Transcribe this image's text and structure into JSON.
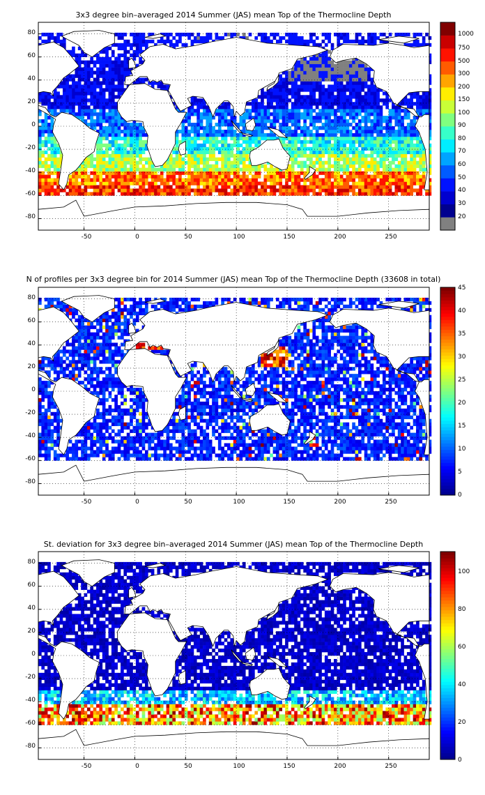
{
  "colors": {
    "land_fill": "#ffffff",
    "coast_stroke": "#000000",
    "grid_stroke": "#000000",
    "missing_gray": "#808080",
    "jet": [
      "#00008f",
      "#0000ff",
      "#0080ff",
      "#00ffff",
      "#80ff80",
      "#ffff00",
      "#ff8000",
      "#ff0000",
      "#800000"
    ]
  },
  "chart_data": [
    {
      "type": "heatmap",
      "title": "3x3 degree bin–averaged 2014 Summer (JAS) mean Top of the Thermocline Depth",
      "xlabel": "",
      "ylabel": "",
      "xlim": [
        -95,
        290
      ],
      "ylim": [
        -90,
        90
      ],
      "x_ticks": [
        "-50",
        "0",
        "50",
        "100",
        "150",
        "200",
        "250"
      ],
      "y_ticks": [
        "80",
        "60",
        "40",
        "20",
        "0",
        "-20",
        "-40",
        "-60",
        "-80"
      ],
      "grid": true,
      "bin_size_deg": 3,
      "colorbar": {
        "scale": "categorical",
        "labels": [
          "20",
          "30",
          "40",
          "50",
          "60",
          "70",
          "80",
          "90",
          "100",
          "150",
          "200",
          "300",
          "500",
          "750",
          "1000"
        ],
        "has_gray_missing_class": true
      },
      "field_description": "Shallow (20-40 m, blue) in tropics and North Pacific/Atlantic; gray (missing) patches in North Pacific and Arctic; deep (300-750 m, orange-red) along the Southern Ocean 45-60S",
      "value_range": [
        20,
        1000
      ]
    },
    {
      "type": "heatmap",
      "title": "N of profiles per 3x3 degree bin for 2014 Summer (JAS) mean Top of the Thermocline Depth  (33608 in total)",
      "xlabel": "",
      "ylabel": "",
      "xlim": [
        -95,
        290
      ],
      "ylim": [
        -90,
        90
      ],
      "x_ticks": [
        "-50",
        "0",
        "50",
        "100",
        "150",
        "200",
        "250"
      ],
      "y_ticks": [
        "80",
        "60",
        "40",
        "20",
        "0",
        "-20",
        "-40",
        "-60",
        "-80"
      ],
      "grid": true,
      "bin_size_deg": 3,
      "total_profiles": 33608,
      "colorbar": {
        "scale": "linear",
        "min": 0,
        "max": 45,
        "labels": [
          "45",
          "40",
          "35",
          "30",
          "25",
          "20",
          "15",
          "10",
          "5",
          "0"
        ]
      },
      "field_description": "Mostly 1-10 profiles per bin (blue) over all oceans, with hot spots (25-45) near Japan, Mediterranean, Arabian Sea and scattered Pacific bins",
      "value_range": [
        0,
        45
      ]
    },
    {
      "type": "heatmap",
      "title": "St. deviation for 3x3 degree bin–averaged 2014 Summer (JAS) mean Top of the Thermocline Depth",
      "xlabel": "",
      "ylabel": "",
      "xlim": [
        -95,
        290
      ],
      "ylim": [
        -90,
        90
      ],
      "x_ticks": [
        "-50",
        "0",
        "50",
        "100",
        "150",
        "200",
        "250"
      ],
      "y_ticks": [
        "80",
        "60",
        "40",
        "20",
        "0",
        "-20",
        "-40",
        "-60",
        "-80"
      ],
      "grid": true,
      "bin_size_deg": 3,
      "colorbar": {
        "scale": "linear",
        "min": 0,
        "max": 110,
        "labels": [
          "100",
          "80",
          "60",
          "40",
          "20",
          "0"
        ]
      },
      "field_description": "Low (0-10, dark blue) over most oceans; high (60-110, yellow to dark red) in the Southern Ocean band 45-60S",
      "value_range": [
        0,
        110
      ]
    }
  ]
}
